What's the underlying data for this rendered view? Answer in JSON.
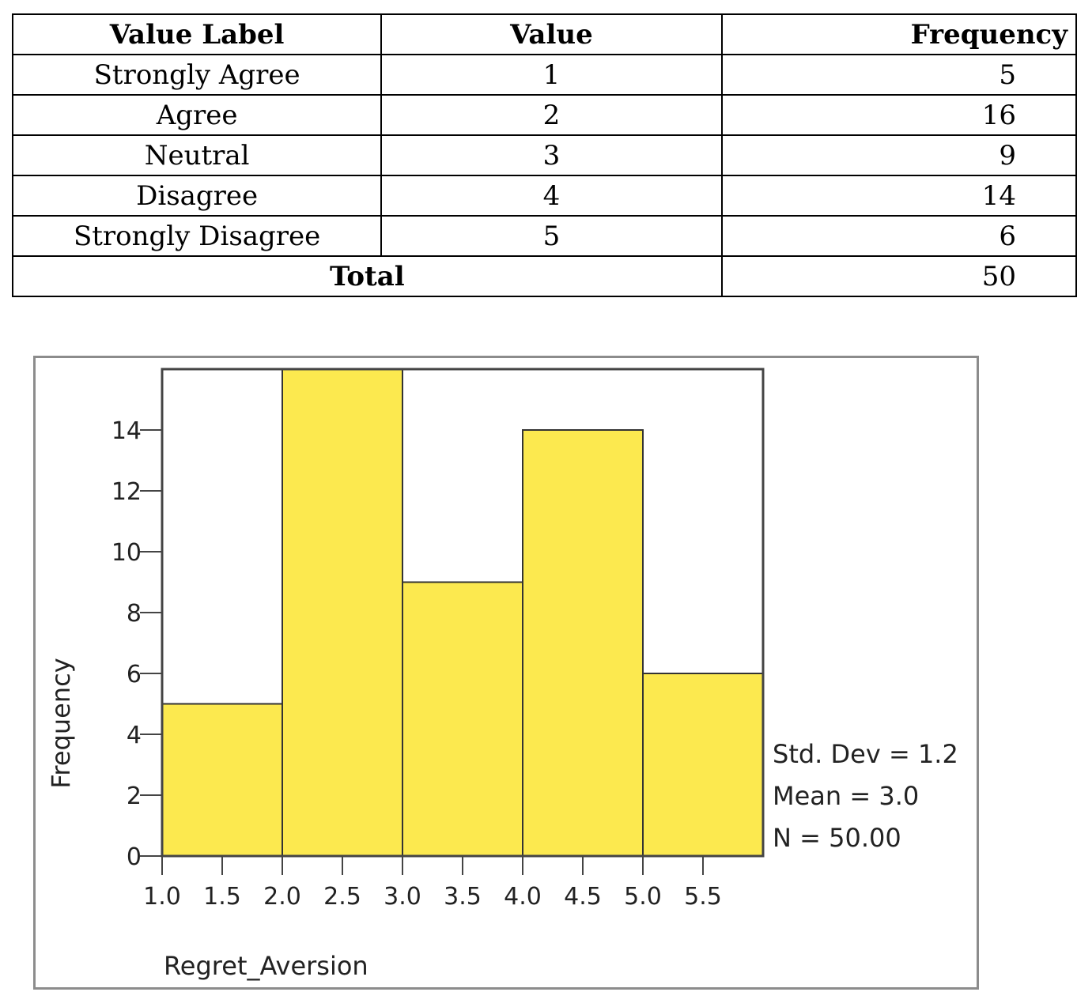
{
  "table": {
    "headers": [
      "Value Label",
      "Value",
      "Frequency"
    ],
    "rows": [
      {
        "label": "Strongly Agree",
        "value": "1",
        "frequency": "5"
      },
      {
        "label": "Agree",
        "value": "2",
        "frequency": "16"
      },
      {
        "label": "Neutral",
        "value": "3",
        "frequency": "9"
      },
      {
        "label": "Disagree",
        "value": "4",
        "frequency": "14"
      },
      {
        "label": "Strongly Disagree",
        "value": "5",
        "frequency": "6"
      }
    ],
    "total_label": "Total",
    "total_value": "50"
  },
  "chart_data": {
    "type": "bar",
    "subtype": "histogram",
    "bins": [
      {
        "x0": 1.0,
        "x1": 2.0,
        "count": 5
      },
      {
        "x0": 2.0,
        "x1": 3.0,
        "count": 16
      },
      {
        "x0": 3.0,
        "x1": 4.0,
        "count": 9
      },
      {
        "x0": 4.0,
        "x1": 5.0,
        "count": 14
      },
      {
        "x0": 5.0,
        "x1": 6.0,
        "count": 6
      }
    ],
    "xlabel": "Regret_Aversion",
    "ylabel": "Frequency",
    "xlim": [
      1.0,
      6.0
    ],
    "ylim": [
      0,
      16
    ],
    "x_ticks": [
      "1.0",
      "1.5",
      "2.0",
      "2.5",
      "3.0",
      "3.5",
      "4.0",
      "4.5",
      "5.0",
      "5.5"
    ],
    "y_ticks": [
      "0",
      "2",
      "4",
      "6",
      "8",
      "10",
      "12",
      "14"
    ],
    "stats": [
      "Std. Dev = 1.2",
      "Mean = 3.0",
      "N = 50.00"
    ],
    "bar_color": "#fce94f",
    "grid": false,
    "legend": "none"
  }
}
